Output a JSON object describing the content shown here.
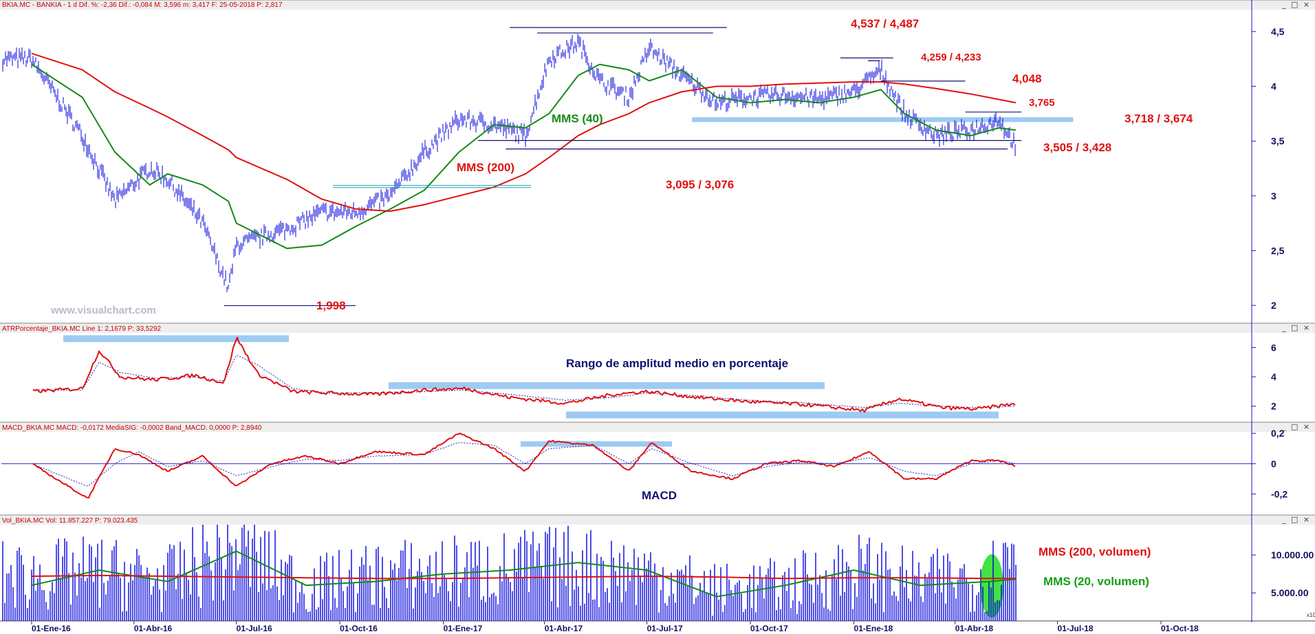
{
  "brand": "www.visualchart.com",
  "colors": {
    "price": "#0000dd",
    "mms40": "#138a13",
    "mms200": "#e01010",
    "annot_red": "#e01010",
    "annot_navy": "#101070",
    "band": "#9ecbf3",
    "axis": "#1010c8"
  },
  "panels": [
    {
      "id": "price",
      "header": "BKIA.MC - BANKIA - 1 d  Dif. %: -2,36  Dif.: -0,084  M: 3,596  m: 3,417  F: 25-05-2018  P: 2,817",
      "axis_ticks": [
        "4,5",
        "4",
        "3,5",
        "3",
        "2,5",
        "2"
      ],
      "axis_values": [
        4.5,
        4,
        3.5,
        3,
        2.5,
        2
      ],
      "ylim": [
        1.85,
        4.7
      ]
    },
    {
      "id": "atr",
      "header": "ATRPorcentaje_BKIA.MC  Line 1: 2,1679  P: 33,5292",
      "axis_ticks": [
        "6",
        "4",
        "2"
      ],
      "axis_values": [
        6,
        4,
        2
      ],
      "ylim": [
        1.0,
        7.0
      ]
    },
    {
      "id": "macd",
      "header": "MACD_BKIA.MC  MACD: -0,0172  MediaSIG: -0,0002  Band_MACD: 0,0000  P: 2,8940",
      "axis_ticks": [
        "0,2",
        "0",
        "-0,2"
      ],
      "axis_values": [
        0.2,
        0,
        -0.2
      ],
      "ylim": [
        -0.33,
        0.21
      ]
    },
    {
      "id": "vol",
      "header": "Vol_BKIA.MC  Vol: 11.857.227  P: 79.023.435",
      "axis_ticks": [
        "10.000.00",
        "5.000.00"
      ],
      "axis_values": [
        10000000,
        5000000
      ],
      "ylim": [
        1300000,
        14000000
      ]
    }
  ],
  "x_axis": {
    "labels": [
      "01-Ene-16",
      "01-Abr-16",
      "01-Jul-16",
      "01-Oct-16",
      "01-Ene-17",
      "01-Abr-17",
      "01-Jul-17",
      "01-Oct-17",
      "01-Ene-18",
      "01-Abr-18",
      "01-Jul-18",
      "01-Oct-18"
    ],
    "dates": [
      "2016-01-01",
      "2016-04-01",
      "2016-07-01",
      "2016-10-01",
      "2017-01-01",
      "2017-04-01",
      "2017-07-01",
      "2017-10-01",
      "2018-01-01",
      "2018-04-01",
      "2018-07-01",
      "2018-10-01"
    ],
    "footer_tag": "x10"
  },
  "annotations": {
    "price": [
      {
        "text": "4,537 / 4,487",
        "color": "red",
        "level": [
          4.537,
          4.487
        ],
        "from": "2017-03-01",
        "to": "2017-09-10"
      },
      {
        "text": "4,259 / 4,233",
        "color": "red",
        "level": [
          4.259,
          4.233
        ],
        "from": "2017-12-20",
        "to": "2018-02-05"
      },
      {
        "text": "4,048",
        "color": "red",
        "level": [
          4.048
        ],
        "from": "2018-01-25",
        "to": "2018-04-10"
      },
      {
        "text": "3,765",
        "color": "red",
        "level": [
          3.765
        ],
        "from": "2018-04-10",
        "to": "2018-05-30"
      },
      {
        "text": "3,718 / 3,674",
        "color": "red",
        "band": [
          3.674,
          3.718
        ],
        "from": "2017-08-10",
        "to": "2018-07-15"
      },
      {
        "text": "3,505 / 3,428",
        "color": "red",
        "level": [
          3.505,
          3.428
        ],
        "from": "2017-02-01",
        "to": "2018-05-30"
      },
      {
        "text": "3,095 / 3,076",
        "color": "red",
        "cyan_level": [
          3.095,
          3.076
        ],
        "from": "2016-09-25",
        "to": "2017-03-20"
      },
      {
        "text": "1,998",
        "color": "red",
        "level": [
          1.998
        ],
        "from": "2016-06-20",
        "to": "2016-10-15"
      },
      {
        "text": "MMS (40)",
        "color": "green"
      },
      {
        "text": "MMS (200)",
        "color": "red"
      }
    ],
    "atr": [
      {
        "text": "Rango de amplitud medio en porcentaje",
        "color": "navy"
      }
    ],
    "macd": [
      {
        "text": "MACD",
        "color": "navy"
      }
    ],
    "vol": [
      {
        "text": "MMS (200, volumen)",
        "color": "red"
      },
      {
        "text": "MMS (20, volumen)",
        "color": "green"
      }
    ]
  },
  "chart_data": [
    {
      "type": "line",
      "subtype": "ohlc-bars",
      "title": "BKIA.MC - BANKIA - 1 d",
      "ylim": [
        1.85,
        4.7
      ],
      "x": [
        "2016-01-01",
        "2016-02-15",
        "2016-03-15",
        "2016-04-15",
        "2016-05-01",
        "2016-06-01",
        "2016-06-24",
        "2016-07-01",
        "2016-08-15",
        "2016-09-15",
        "2016-10-15",
        "2016-11-15",
        "2016-12-15",
        "2017-01-15",
        "2017-02-15",
        "2017-03-15",
        "2017-04-05",
        "2017-05-01",
        "2017-05-20",
        "2017-06-15",
        "2017-07-03",
        "2017-08-01",
        "2017-09-01",
        "2017-10-01",
        "2017-11-01",
        "2017-12-01",
        "2018-01-01",
        "2018-01-25",
        "2018-02-15",
        "2018-03-15",
        "2018-04-15",
        "2018-05-10",
        "2018-05-25"
      ],
      "series": [
        {
          "name": "BKIA.MC",
          "values": [
            4.25,
            3.55,
            2.95,
            3.25,
            3.15,
            2.75,
            2.15,
            2.55,
            2.7,
            2.85,
            2.85,
            3.0,
            3.4,
            3.7,
            3.65,
            3.55,
            4.25,
            4.4,
            4.05,
            3.9,
            4.35,
            4.1,
            3.85,
            3.9,
            3.92,
            3.88,
            3.95,
            4.15,
            3.75,
            3.55,
            3.6,
            3.7,
            3.45
          ]
        },
        {
          "name": "MMS (40)",
          "values": [
            4.2,
            3.9,
            3.4,
            3.1,
            3.2,
            3.1,
            2.95,
            2.75,
            2.52,
            2.55,
            2.72,
            2.88,
            3.05,
            3.4,
            3.65,
            3.62,
            3.75,
            4.1,
            4.2,
            4.15,
            4.05,
            4.15,
            3.9,
            3.85,
            3.88,
            3.85,
            3.9,
            3.97,
            3.75,
            3.6,
            3.55,
            3.62,
            3.6
          ]
        },
        {
          "name": "MMS (200)",
          "values": [
            4.3,
            4.15,
            3.95,
            3.8,
            3.72,
            3.55,
            3.42,
            3.35,
            3.15,
            2.97,
            2.88,
            2.86,
            2.92,
            3.0,
            3.08,
            3.2,
            3.35,
            3.55,
            3.65,
            3.75,
            3.85,
            3.95,
            4.0,
            4.0,
            4.02,
            4.03,
            4.04,
            4.04,
            4.02,
            3.98,
            3.93,
            3.88,
            3.85
          ]
        }
      ]
    },
    {
      "type": "line",
      "title": "ATRPorcentaje_BKIA.MC",
      "ylim": [
        1.0,
        7.0
      ],
      "x": [
        "2016-01-01",
        "2016-02-15",
        "2016-03-01",
        "2016-03-20",
        "2016-04-20",
        "2016-05-25",
        "2016-06-20",
        "2016-07-01",
        "2016-07-20",
        "2016-08-20",
        "2016-09-20",
        "2016-11-01",
        "2016-12-15",
        "2017-01-20",
        "2017-03-01",
        "2017-04-20",
        "2017-06-01",
        "2017-07-01",
        "2017-08-15",
        "2017-10-01",
        "2017-11-20",
        "2018-01-10",
        "2018-02-10",
        "2018-03-20",
        "2018-04-20",
        "2018-05-25"
      ],
      "series": [
        {
          "name": "Line 1",
          "values": [
            3.0,
            3.2,
            5.8,
            4.0,
            3.8,
            4.1,
            3.6,
            6.7,
            4.2,
            3.0,
            2.9,
            2.8,
            3.1,
            3.2,
            2.6,
            2.2,
            2.8,
            3.0,
            2.6,
            2.3,
            2.1,
            1.7,
            2.5,
            1.9,
            1.8,
            2.17
          ]
        },
        {
          "name": "",
          "values": [
            3.1,
            3.1,
            5.0,
            4.3,
            3.9,
            4.0,
            3.7,
            5.5,
            4.8,
            3.2,
            2.9,
            2.9,
            3.0,
            3.1,
            2.8,
            2.4,
            2.6,
            2.9,
            2.7,
            2.4,
            2.2,
            1.9,
            2.2,
            2.0,
            1.9,
            2.0
          ]
        }
      ]
    },
    {
      "type": "line",
      "title": "MACD_BKIA.MC",
      "ylim": [
        -0.33,
        0.21
      ],
      "x": [
        "2016-01-01",
        "2016-02-20",
        "2016-03-15",
        "2016-04-05",
        "2016-05-01",
        "2016-06-01",
        "2016-07-01",
        "2016-08-01",
        "2016-09-01",
        "2016-10-01",
        "2016-11-01",
        "2016-12-15",
        "2017-01-15",
        "2017-02-15",
        "2017-03-15",
        "2017-04-05",
        "2017-05-15",
        "2017-06-15",
        "2017-07-05",
        "2017-08-10",
        "2017-09-15",
        "2017-10-15",
        "2017-11-15",
        "2017-12-15",
        "2018-01-15",
        "2018-02-15",
        "2018-03-15",
        "2018-04-15",
        "2018-05-10",
        "2018-05-25"
      ],
      "series": [
        {
          "name": "MACD",
          "values": [
            0.0,
            -0.23,
            0.1,
            0.06,
            -0.05,
            0.05,
            -0.15,
            0.0,
            0.05,
            0.0,
            0.08,
            0.06,
            0.2,
            0.1,
            -0.05,
            0.15,
            0.12,
            -0.05,
            0.14,
            -0.05,
            -0.1,
            0.0,
            0.02,
            -0.02,
            0.08,
            -0.1,
            -0.1,
            0.02,
            0.02,
            -0.017
          ]
        },
        {
          "name": "MediaSIG",
          "values": [
            0.0,
            -0.15,
            0.0,
            0.08,
            -0.02,
            0.02,
            -0.08,
            -0.02,
            0.03,
            0.02,
            0.05,
            0.06,
            0.14,
            0.12,
            0.0,
            0.1,
            0.12,
            0.0,
            0.1,
            0.0,
            -0.08,
            -0.02,
            0.01,
            0.0,
            0.04,
            -0.05,
            -0.08,
            0.0,
            0.02,
            0.0
          ]
        }
      ]
    },
    {
      "type": "bar",
      "title": "Vol_BKIA.MC",
      "ylim": [
        1300000,
        14000000
      ],
      "x": [
        "2016-01-01",
        "2016-03-01",
        "2016-05-01",
        "2016-07-01",
        "2016-09-01",
        "2016-11-01",
        "2017-01-01",
        "2017-03-01",
        "2017-05-01",
        "2017-07-01",
        "2017-09-01",
        "2017-11-01",
        "2018-01-01",
        "2018-03-01",
        "2018-05-01",
        "2018-05-25"
      ],
      "series": [
        {
          "name": "Vol",
          "values": [
            8000000,
            8500000,
            7500000,
            12000000,
            6500000,
            8000000,
            8500000,
            9000000,
            9500000,
            8500000,
            6000000,
            6500000,
            9000000,
            7000000,
            8000000,
            11857227
          ]
        },
        {
          "name": "MMS (200, volumen)",
          "values": [
            7200000,
            7300000,
            7200000,
            7100000,
            7000000,
            6900000,
            6900000,
            7000000,
            7100000,
            7200000,
            7100000,
            6900000,
            7000000,
            7000000,
            6900000,
            6900000
          ]
        },
        {
          "name": "MMS (20, volumen)",
          "values": [
            6000000,
            8000000,
            6500000,
            10500000,
            6000000,
            6500000,
            7500000,
            8000000,
            9000000,
            8000000,
            4500000,
            6000000,
            8000000,
            6000000,
            6500000,
            6800000
          ]
        }
      ]
    }
  ]
}
